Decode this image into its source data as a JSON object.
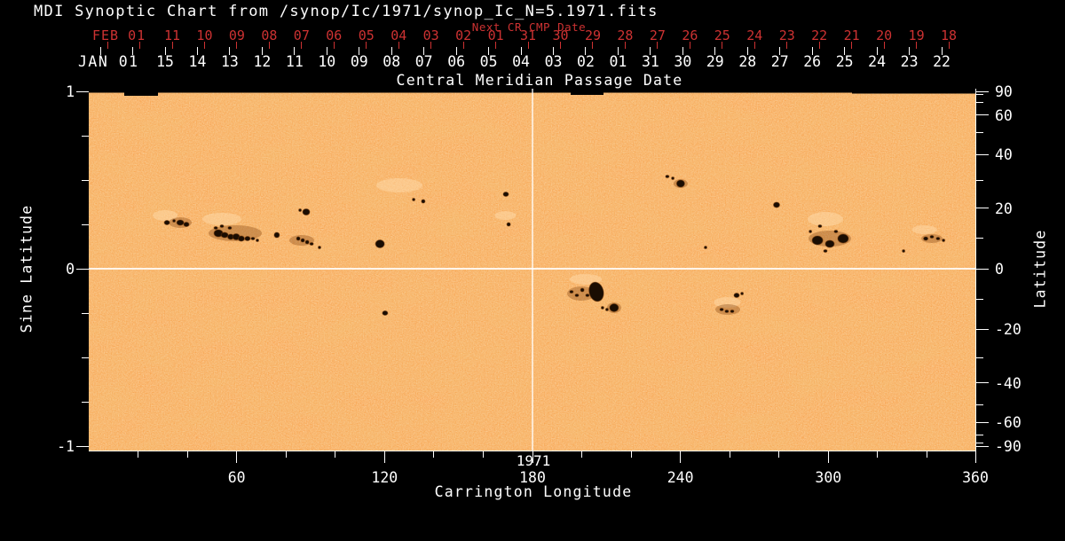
{
  "header": {
    "title": "MDI Synoptic Chart from /synop/Ic/1971/synop_Ic_N=5.1971.fits"
  },
  "cmp_axis": {
    "axis_title": "Central Meridian Passage Date",
    "next_cr_label": "Next CR CMP Date",
    "feb_label": "FEB 01",
    "jan_label": "JAN 01",
    "next_cr_dates": [
      "11",
      "10",
      "09",
      "08",
      "07",
      "06",
      "05",
      "04",
      "03",
      "02",
      "01",
      "31",
      "30",
      "29",
      "28",
      "27",
      "26",
      "25",
      "24",
      "23",
      "22",
      "21",
      "20",
      "19",
      "18"
    ],
    "cmp_dates": [
      "15",
      "14",
      "13",
      "12",
      "11",
      "10",
      "09",
      "08",
      "07",
      "06",
      "05",
      "04",
      "03",
      "02",
      "01",
      "31",
      "30",
      "29",
      "28",
      "27",
      "26",
      "25",
      "24",
      "23",
      "22"
    ]
  },
  "left_axis": {
    "title": "Sine Latitude",
    "tick_labels": [
      "1",
      "0",
      "-1"
    ],
    "tick_values": [
      1,
      0,
      -1
    ],
    "minor_step": 0.25
  },
  "right_axis": {
    "title": "Latitude",
    "tick_labels": [
      "90",
      "60",
      "40",
      "20",
      "0",
      "-20",
      "-40",
      "-60",
      "-90"
    ],
    "tick_values": [
      90,
      60,
      40,
      20,
      0,
      -20,
      -40,
      -60,
      -90
    ],
    "minor_values": [
      80,
      70,
      50,
      30,
      10,
      -10,
      -30,
      -50,
      -70,
      -80
    ]
  },
  "bottom_axis": {
    "title": "Carrington Longitude",
    "year": "1971",
    "tick_labels": [
      "60",
      "120",
      "180",
      "240",
      "300",
      "360"
    ],
    "tick_values": [
      60,
      120,
      180,
      240,
      300,
      360
    ],
    "minor_step": 20
  },
  "colors": {
    "background": "#000000",
    "text": "#ffffff",
    "red": "#cd3232",
    "map_base": "#f8a24e",
    "map_bright": "#ffddb0",
    "map_shadow": "#e08c2e",
    "sunspot": "#1a0d02",
    "penumbra": "#8a4a14",
    "grid": "#ffffff"
  },
  "chart_data": {
    "type": "heatmap",
    "title": "Central Meridian Passage Date",
    "xlabel": "Carrington Longitude",
    "ylabel_left": "Sine Latitude",
    "ylabel_right": "Latitude",
    "year": "1971",
    "x_range": [
      0,
      360
    ],
    "y_range_sine": [
      -1,
      1
    ],
    "crosshair": {
      "longitude": 180,
      "sine_latitude": 0
    },
    "spots_format": "lon_deg, sine_lat, rx_px, ry_px, rot_deg(optional)",
    "sunspots": [
      [
        31.7,
        0.26,
        3,
        2.5
      ],
      [
        37.1,
        0.26,
        4,
        3
      ],
      [
        39.6,
        0.25,
        3,
        2.5
      ],
      [
        34.6,
        0.27,
        1.5,
        1.5
      ],
      [
        51.5,
        0.23,
        2,
        1.5
      ],
      [
        52.6,
        0.2,
        5,
        4
      ],
      [
        55.1,
        0.19,
        4,
        3
      ],
      [
        54.0,
        0.24,
        2,
        1.5
      ],
      [
        57.2,
        0.23,
        2,
        1.5
      ],
      [
        57.6,
        0.18,
        3.5,
        3
      ],
      [
        59.8,
        0.18,
        4,
        3.5
      ],
      [
        61.9,
        0.17,
        3.5,
        3
      ],
      [
        64.4,
        0.17,
        3,
        2.5
      ],
      [
        66.6,
        0.17,
        2,
        1.5
      ],
      [
        68.4,
        0.16,
        1.5,
        1.5
      ],
      [
        76.3,
        0.19,
        3,
        3
      ],
      [
        85.0,
        0.17,
        2,
        2
      ],
      [
        86.8,
        0.16,
        2,
        2
      ],
      [
        88.6,
        0.15,
        2,
        2
      ],
      [
        90.4,
        0.14,
        2,
        1.5
      ],
      [
        93.6,
        0.12,
        1.5,
        1.5
      ],
      [
        88.2,
        0.32,
        4,
        3.5
      ],
      [
        85.7,
        0.33,
        1.5,
        1.5
      ],
      [
        118.1,
        0.14,
        5,
        4.5
      ],
      [
        131.8,
        0.39,
        1.5,
        1.5
      ],
      [
        135.7,
        0.38,
        2,
        2
      ],
      [
        169.2,
        0.42,
        3,
        2.5
      ],
      [
        170.3,
        0.25,
        2,
        2
      ],
      [
        234.7,
        0.52,
        2,
        1.5
      ],
      [
        236.9,
        0.51,
        1.5,
        1.5
      ],
      [
        240.1,
        0.48,
        4.5,
        4
      ],
      [
        279.0,
        0.36,
        3.5,
        3
      ],
      [
        292.7,
        0.21,
        1.5,
        1.5
      ],
      [
        296.6,
        0.24,
        2,
        1.5
      ],
      [
        295.6,
        0.16,
        6,
        5
      ],
      [
        300.6,
        0.14,
        5,
        4
      ],
      [
        306.0,
        0.17,
        6,
        5
      ],
      [
        303.1,
        0.21,
        2,
        1.5
      ],
      [
        298.8,
        0.1,
        2,
        1.5
      ],
      [
        330.5,
        0.1,
        1.5,
        1.5
      ],
      [
        339.5,
        0.17,
        2.5,
        2
      ],
      [
        342.0,
        0.18,
        2,
        1.5
      ],
      [
        344.5,
        0.17,
        2,
        1.5
      ],
      [
        346.7,
        0.16,
        1.5,
        1.5
      ],
      [
        120.2,
        -0.25,
        3,
        2.5
      ],
      [
        195.8,
        -0.13,
        2,
        1.5
      ],
      [
        198.0,
        -0.15,
        2,
        1.5
      ],
      [
        200.2,
        -0.12,
        2,
        2
      ],
      [
        202.3,
        -0.15,
        2,
        1.5
      ],
      [
        205.9,
        -0.13,
        8,
        11,
        -15
      ],
      [
        213.1,
        -0.22,
        5,
        4.5
      ],
      [
        208.4,
        -0.22,
        1.5,
        1.5
      ],
      [
        210.2,
        -0.23,
        1.5,
        1.5
      ],
      [
        262.8,
        -0.15,
        3,
        2.5
      ],
      [
        265.0,
        -0.14,
        1.5,
        1.5
      ],
      [
        256.7,
        -0.23,
        2,
        1.5
      ],
      [
        258.8,
        -0.24,
        2,
        1.5
      ],
      [
        261.0,
        -0.24,
        2,
        1.5
      ],
      [
        250.2,
        0.12,
        1.5,
        1.5
      ]
    ],
    "penumbrae": [
      [
        59.4,
        0.2,
        30,
        9
      ],
      [
        300.6,
        0.17,
        24,
        9
      ],
      [
        199.8,
        -0.14,
        16,
        8
      ],
      [
        86.4,
        0.16,
        14,
        6
      ],
      [
        37.1,
        0.26,
        13,
        6
      ],
      [
        259.2,
        -0.23,
        14,
        6
      ],
      [
        342.0,
        0.17,
        12,
        5
      ],
      [
        240.1,
        0.48,
        8,
        5
      ],
      [
        213.1,
        -0.22,
        8,
        6
      ]
    ],
    "faculae": [
      [
        126.0,
        0.47,
        26,
        8
      ],
      [
        298.8,
        0.28,
        20,
        8
      ],
      [
        54.0,
        0.28,
        22,
        7
      ],
      [
        201.6,
        -0.06,
        18,
        6
      ],
      [
        259.0,
        -0.19,
        15,
        6
      ],
      [
        31.0,
        0.3,
        14,
        6
      ],
      [
        169.0,
        0.3,
        12,
        5
      ],
      [
        339.0,
        0.22,
        14,
        5
      ]
    ],
    "dark_bands": [
      [
        0,
        0,
        1000,
        4.5
      ],
      [
        40,
        0,
        38,
        8
      ],
      [
        543,
        0,
        37,
        7
      ],
      [
        860,
        0,
        140,
        5.5
      ]
    ]
  }
}
